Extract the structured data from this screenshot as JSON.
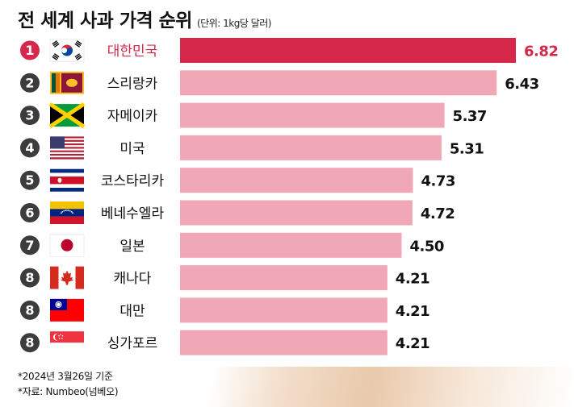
{
  "title": "전 세계 사과 가격 순위",
  "unit": "(단위: 1kg당 달러)",
  "notes": {
    "date": "*2024년 3월26일 기준",
    "source": "*자료: Numbeo(넘베오)"
  },
  "chart_data": {
    "type": "bar",
    "orientation": "horizontal",
    "categories": [
      "대한민국",
      "스리랑카",
      "자메이카",
      "미국",
      "코스타리카",
      "베네수엘라",
      "일본",
      "캐나다",
      "대만",
      "싱가포르"
    ],
    "ranks": [
      "1",
      "2",
      "3",
      "4",
      "5",
      "6",
      "7",
      "8",
      "8",
      "8"
    ],
    "flags": [
      "flag-korea-icon",
      "flag-sri-lanka-icon",
      "flag-jamaica-icon",
      "flag-usa-icon",
      "flag-costa-rica-icon",
      "flag-venezuela-icon",
      "flag-japan-icon",
      "flag-canada-icon",
      "flag-taiwan-icon",
      "flag-singapore-icon"
    ],
    "values": [
      6.82,
      6.43,
      5.37,
      5.31,
      4.73,
      4.72,
      4.5,
      4.21,
      4.21,
      4.21
    ],
    "value_labels": [
      "6.82",
      "6.43",
      "5.37",
      "5.31",
      "4.73",
      "4.72",
      "4.50",
      "4.21",
      "4.21",
      "4.21"
    ],
    "highlight_index": 0,
    "colors": {
      "highlight_bar": "#d6284a",
      "bar": "#f0a7b6",
      "highlight_text": "#d6284a",
      "text": "#111111",
      "rank_circle": "#3c3c3c"
    }
  }
}
